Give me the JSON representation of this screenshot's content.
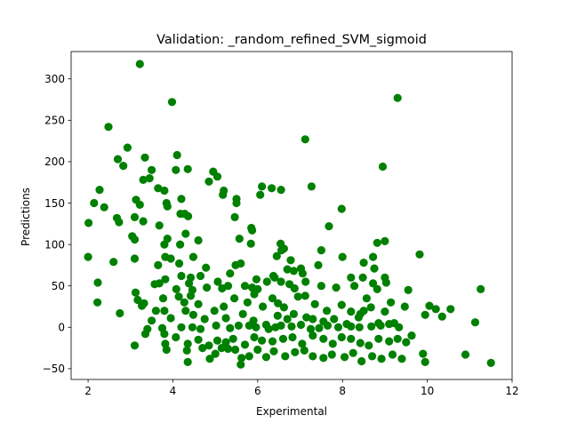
{
  "chart_data": {
    "type": "scatter",
    "title": "Validation: _random_refined_SVM_sigmoid",
    "xlabel": "Experimental",
    "ylabel": "Predictions",
    "xlim": [
      1.6,
      12.0
    ],
    "ylim": [
      -63,
      333
    ],
    "xticks": [
      2,
      4,
      6,
      8,
      10,
      12
    ],
    "yticks": [
      -50,
      0,
      50,
      100,
      150,
      200,
      250,
      300
    ],
    "grid": false,
    "legend": "none",
    "marker_color": "#008000",
    "points": [
      [
        3.22,
        318
      ],
      [
        9.3,
        277
      ],
      [
        3.98,
        272
      ],
      [
        2.48,
        242
      ],
      [
        7.12,
        227
      ],
      [
        2.93,
        217
      ],
      [
        4.1,
        208
      ],
      [
        3.34,
        205
      ],
      [
        2.7,
        203
      ],
      [
        2.83,
        195
      ],
      [
        3.5,
        190
      ],
      [
        4.35,
        191
      ],
      [
        4.07,
        190
      ],
      [
        4.95,
        188
      ],
      [
        5.05,
        182
      ],
      [
        8.95,
        194
      ],
      [
        3.3,
        178
      ],
      [
        3.45,
        180
      ],
      [
        4.85,
        176
      ],
      [
        3.65,
        168
      ],
      [
        5.2,
        165
      ],
      [
        3.8,
        165
      ],
      [
        6.1,
        170
      ],
      [
        6.33,
        168
      ],
      [
        6.55,
        166
      ],
      [
        7.27,
        170
      ],
      [
        2.27,
        166
      ],
      [
        2.14,
        150
      ],
      [
        2.38,
        145
      ],
      [
        3.13,
        154
      ],
      [
        3.22,
        148
      ],
      [
        3.85,
        150
      ],
      [
        3.87,
        146
      ],
      [
        5.18,
        160
      ],
      [
        5.5,
        150
      ],
      [
        6.06,
        160
      ],
      [
        7.98,
        143
      ],
      [
        5.5,
        155
      ],
      [
        4.2,
        155
      ],
      [
        2.68,
        132
      ],
      [
        2.73,
        127
      ],
      [
        3.1,
        133
      ],
      [
        4.18,
        137
      ],
      [
        4.28,
        137
      ],
      [
        4.36,
        134
      ],
      [
        5.46,
        133
      ],
      [
        5.85,
        120
      ],
      [
        5.87,
        117
      ],
      [
        2.01,
        126
      ],
      [
        3.3,
        128
      ],
      [
        3.68,
        123
      ],
      [
        3.87,
        107
      ],
      [
        4.3,
        113
      ],
      [
        4.17,
        100
      ],
      [
        3.04,
        110
      ],
      [
        3.1,
        106
      ],
      [
        4.6,
        105
      ],
      [
        5.57,
        107
      ],
      [
        5.84,
        101
      ],
      [
        6.54,
        101
      ],
      [
        6.56,
        93
      ],
      [
        7.68,
        122
      ],
      [
        3.8,
        100
      ],
      [
        3.82,
        85
      ],
      [
        2.0,
        85
      ],
      [
        2.6,
        79
      ],
      [
        3.1,
        83
      ],
      [
        3.65,
        75
      ],
      [
        3.95,
        83
      ],
      [
        4.15,
        77
      ],
      [
        4.48,
        85
      ],
      [
        4.65,
        62
      ],
      [
        4.78,
        72
      ],
      [
        5.48,
        75
      ],
      [
        5.6,
        77
      ],
      [
        6.45,
        86
      ],
      [
        6.62,
        95
      ],
      [
        6.78,
        81
      ],
      [
        7.5,
        93
      ],
      [
        7.43,
        75
      ],
      [
        8.0,
        85
      ],
      [
        8.72,
        85
      ],
      [
        8.82,
        102
      ],
      [
        9.0,
        104
      ],
      [
        9.82,
        88
      ],
      [
        8.5,
        78
      ],
      [
        8.75,
        71
      ],
      [
        6.7,
        70
      ],
      [
        6.85,
        68
      ],
      [
        7.02,
        71
      ],
      [
        7.06,
        65
      ],
      [
        6.37,
        62
      ],
      [
        5.97,
        58
      ],
      [
        5.35,
        65
      ],
      [
        5.06,
        55
      ],
      [
        4.2,
        62
      ],
      [
        4.42,
        60
      ],
      [
        2.23,
        54
      ],
      [
        3.17,
        33
      ],
      [
        3.57,
        52
      ],
      [
        3.68,
        53
      ],
      [
        3.82,
        58
      ],
      [
        4.08,
        46
      ],
      [
        4.38,
        53
      ],
      [
        4.42,
        38
      ],
      [
        4.46,
        45
      ],
      [
        4.8,
        48
      ],
      [
        5.16,
        47
      ],
      [
        5.3,
        50
      ],
      [
        5.7,
        50
      ],
      [
        5.87,
        48
      ],
      [
        6.0,
        46
      ],
      [
        6.22,
        55
      ],
      [
        6.4,
        60
      ],
      [
        6.55,
        55
      ],
      [
        6.75,
        52
      ],
      [
        6.87,
        47
      ],
      [
        7.13,
        55
      ],
      [
        7.5,
        50
      ],
      [
        7.85,
        48
      ],
      [
        8.2,
        60
      ],
      [
        8.28,
        50
      ],
      [
        8.48,
        60
      ],
      [
        8.72,
        53
      ],
      [
        8.82,
        46
      ],
      [
        9.0,
        60
      ],
      [
        9.03,
        54
      ],
      [
        9.55,
        45
      ],
      [
        11.26,
        46
      ],
      [
        2.22,
        30
      ],
      [
        2.75,
        17
      ],
      [
        3.27,
        26
      ],
      [
        3.32,
        29
      ],
      [
        3.5,
        8
      ],
      [
        3.6,
        20
      ],
      [
        3.77,
        35
      ],
      [
        4.14,
        37
      ],
      [
        4.27,
        30
      ],
      [
        4.3,
        20
      ],
      [
        4.6,
        28
      ],
      [
        4.98,
        20
      ],
      [
        5.2,
        25
      ],
      [
        5.45,
        35
      ],
      [
        5.76,
        30
      ],
      [
        5.92,
        40
      ],
      [
        6.12,
        25
      ],
      [
        6.35,
        35
      ],
      [
        6.48,
        29
      ],
      [
        6.62,
        24
      ],
      [
        6.95,
        37
      ],
      [
        7.12,
        38
      ],
      [
        7.35,
        28
      ],
      [
        7.63,
        20
      ],
      [
        7.98,
        27
      ],
      [
        8.2,
        19
      ],
      [
        8.38,
        12
      ],
      [
        8.5,
        20
      ],
      [
        8.57,
        35
      ],
      [
        8.67,
        24
      ],
      [
        9.0,
        19
      ],
      [
        9.14,
        30
      ],
      [
        9.47,
        25
      ],
      [
        10.05,
        26
      ],
      [
        10.2,
        22
      ],
      [
        10.55,
        22
      ],
      [
        10.35,
        13
      ],
      [
        11.13,
        6
      ],
      [
        3.12,
        42
      ],
      [
        3.8,
        20
      ],
      [
        3.95,
        11
      ],
      [
        4.48,
        15
      ],
      [
        4.75,
        10
      ],
      [
        5.25,
        11
      ],
      [
        5.65,
        16
      ],
      [
        5.9,
        8
      ],
      [
        6.2,
        3
      ],
      [
        6.47,
        14
      ],
      [
        6.7,
        10
      ],
      [
        6.85,
        16
      ],
      [
        7.15,
        12
      ],
      [
        7.3,
        10
      ],
      [
        7.55,
        7
      ],
      [
        7.8,
        10
      ],
      [
        8.1,
        4
      ],
      [
        8.42,
        16
      ],
      [
        8.85,
        5
      ],
      [
        9.1,
        4
      ],
      [
        9.33,
        0
      ],
      [
        9.95,
        15
      ],
      [
        3.4,
        -2
      ],
      [
        3.75,
        -1
      ],
      [
        4.2,
        0
      ],
      [
        4.46,
        0
      ],
      [
        4.65,
        -2
      ],
      [
        5.02,
        2
      ],
      [
        5.35,
        -1
      ],
      [
        5.55,
        2
      ],
      [
        5.8,
        2
      ],
      [
        5.96,
        0
      ],
      [
        6.26,
        -2
      ],
      [
        6.42,
        0
      ],
      [
        6.55,
        2
      ],
      [
        6.8,
        1
      ],
      [
        7.02,
        3
      ],
      [
        7.25,
        -2
      ],
      [
        7.45,
        -1
      ],
      [
        7.65,
        2
      ],
      [
        7.9,
        0
      ],
      [
        8.2,
        1
      ],
      [
        8.4,
        0
      ],
      [
        8.68,
        1
      ],
      [
        8.9,
        2
      ],
      [
        9.22,
        5
      ],
      [
        3.1,
        -22
      ],
      [
        3.35,
        -8
      ],
      [
        3.8,
        -8
      ],
      [
        3.82,
        -20
      ],
      [
        4.07,
        -12
      ],
      [
        4.35,
        -20
      ],
      [
        4.6,
        -15
      ],
      [
        4.85,
        -22
      ],
      [
        5.05,
        -16
      ],
      [
        5.25,
        -18
      ],
      [
        5.42,
        -14
      ],
      [
        5.7,
        -21
      ],
      [
        5.92,
        -12
      ],
      [
        6.1,
        -16
      ],
      [
        6.35,
        -17
      ],
      [
        6.6,
        -14
      ],
      [
        6.82,
        -12
      ],
      [
        7.05,
        -20
      ],
      [
        7.3,
        -10
      ],
      [
        7.55,
        -14
      ],
      [
        7.77,
        -20
      ],
      [
        7.98,
        -12
      ],
      [
        8.2,
        -14
      ],
      [
        8.42,
        -19
      ],
      [
        8.62,
        -22
      ],
      [
        8.85,
        -14
      ],
      [
        9.1,
        -17
      ],
      [
        9.3,
        -14
      ],
      [
        9.5,
        -18
      ],
      [
        9.63,
        -10
      ],
      [
        3.85,
        -27
      ],
      [
        4.33,
        -28
      ],
      [
        4.7,
        -25
      ],
      [
        4.87,
        -38
      ],
      [
        5.0,
        -32
      ],
      [
        5.15,
        -25
      ],
      [
        5.3,
        -26
      ],
      [
        5.47,
        -27
      ],
      [
        5.62,
        -37
      ],
      [
        5.8,
        -35
      ],
      [
        6.0,
        -27
      ],
      [
        6.2,
        -36
      ],
      [
        6.38,
        -29
      ],
      [
        6.65,
        -35
      ],
      [
        6.88,
        -30
      ],
      [
        7.1,
        -28
      ],
      [
        7.3,
        -35
      ],
      [
        7.55,
        -37
      ],
      [
        7.75,
        -33
      ],
      [
        8.05,
        -36
      ],
      [
        8.25,
        -31
      ],
      [
        8.45,
        -41
      ],
      [
        8.7,
        -35
      ],
      [
        8.92,
        -38
      ],
      [
        9.18,
        -33
      ],
      [
        9.4,
        -38
      ],
      [
        9.9,
        -32
      ],
      [
        10.9,
        -33
      ],
      [
        11.5,
        -43
      ],
      [
        5.6,
        -45
      ],
      [
        4.35,
        -42
      ],
      [
        9.95,
        -42
      ]
    ]
  }
}
